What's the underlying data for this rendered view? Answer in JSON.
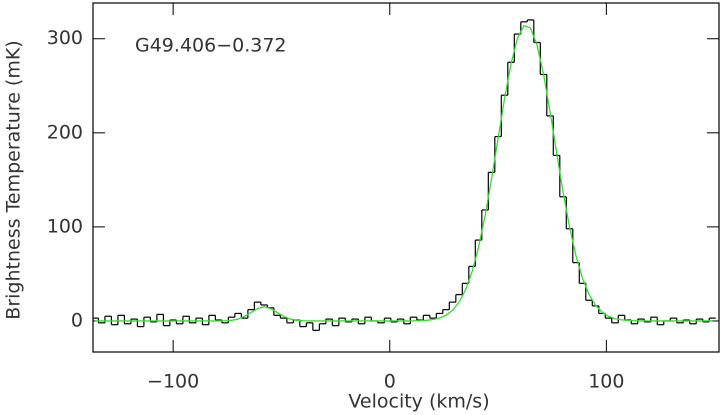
{
  "chart_data": {
    "type": "step",
    "annotation": "G49.406−0.372",
    "xlabel": "Velocity (km/s)",
    "ylabel": "Brightness Temperature (mK)",
    "xlim": [
      -137,
      152
    ],
    "ylim": [
      -33,
      338
    ],
    "xticks": [
      {
        "value": -100,
        "label": "−100"
      },
      0,
      100
    ],
    "yticks": [
      0,
      100,
      200,
      300
    ],
    "x": [
      -136,
      -133,
      -130,
      -127,
      -124,
      -121,
      -118,
      -115,
      -112,
      -109,
      -106,
      -103,
      -100,
      -97,
      -94,
      -91,
      -88,
      -85,
      -82,
      -79,
      -76,
      -73,
      -70,
      -67,
      -64,
      -61,
      -58,
      -55,
      -52,
      -49,
      -46,
      -43,
      -40,
      -37,
      -34,
      -31,
      -28,
      -25,
      -22,
      -19,
      -16,
      -13,
      -10,
      -7,
      -4,
      -1,
      2,
      5,
      8,
      11,
      14,
      17,
      20,
      23,
      26,
      29,
      32,
      35,
      38,
      41,
      44,
      47,
      50,
      53,
      56,
      59,
      62,
      65,
      68,
      71,
      74,
      77,
      80,
      83,
      86,
      89,
      92,
      95,
      98,
      101,
      104,
      107,
      110,
      113,
      116,
      119,
      122,
      125,
      128,
      131,
      134,
      137,
      140,
      143,
      146,
      149
    ],
    "series": [
      {
        "color": "#000000",
        "style": "step",
        "values": [
          3,
          -2,
          5,
          -4,
          6,
          -3,
          2,
          -6,
          4,
          -1,
          7,
          -5,
          1,
          -3,
          5,
          -2,
          3,
          -4,
          6,
          1,
          -2,
          4,
          8,
          3,
          12,
          20,
          17,
          14,
          6,
          3,
          -2,
          1,
          -6,
          -2,
          -10,
          -3,
          2,
          -5,
          3,
          -1,
          2,
          -3,
          4,
          0,
          -2,
          3,
          -1,
          2,
          -3,
          4,
          1,
          6,
          3,
          8,
          12,
          20,
          28,
          40,
          58,
          86,
          118,
          158,
          196,
          240,
          275,
          305,
          318,
          320,
          296,
          262,
          218,
          176,
          132,
          98,
          62,
          40,
          22,
          16,
          8,
          3,
          -2,
          6,
          1,
          -3,
          2,
          -1,
          4,
          -4,
          0,
          3,
          -2,
          1,
          -3,
          2,
          -1,
          3
        ]
      },
      {
        "color": "#33dd33",
        "style": "line",
        "values": [
          0,
          0,
          0,
          0,
          0,
          0,
          0,
          0,
          0,
          0,
          0,
          0,
          0,
          0,
          0,
          0,
          0,
          0,
          0,
          0,
          0.2,
          0.7,
          2.0,
          4.9,
          9.1,
          13.2,
          15,
          13.2,
          9.1,
          4.9,
          2.0,
          0.7,
          0.2,
          0,
          0,
          0,
          0,
          0,
          0,
          0,
          0,
          0,
          0,
          0,
          0,
          0,
          0,
          0,
          0,
          0.1,
          0.3,
          0.7,
          1.5,
          3.2,
          6.2,
          11.4,
          20.0,
          33.1,
          52.4,
          78.5,
          111.8,
          151.1,
          193.9,
          236.5,
          273.6,
          300.9,
          314,
          311.4,
          293.2,
          262.2,
          222.6,
          179.5,
          137.4,
          99.9,
          69.0,
          45.3,
          28.2,
          16.7,
          9.4,
          5.0,
          2.5,
          1.2,
          0.5,
          0.2,
          0,
          0,
          0,
          0,
          0,
          0,
          0,
          0,
          0,
          0,
          0,
          0
        ]
      }
    ]
  }
}
